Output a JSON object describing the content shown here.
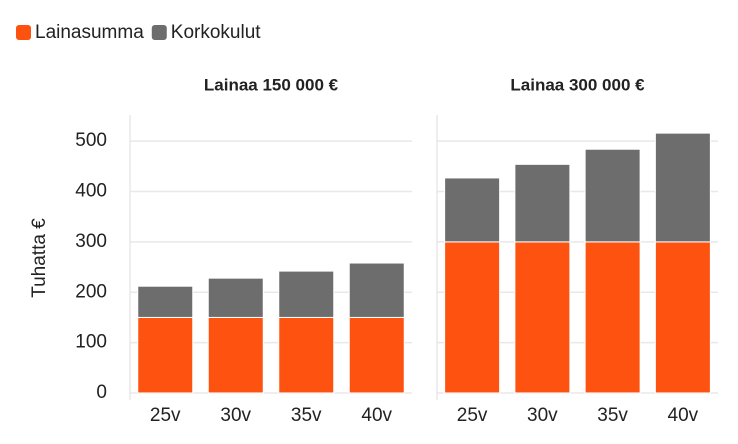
{
  "chart_data": {
    "type": "bar",
    "stacked": true,
    "y_label": "Tuhatta €",
    "facets": [
      "Lainaa 150 000 €",
      "Lainaa 300 000 €"
    ],
    "categories": [
      "25v",
      "30v",
      "35v",
      "40v"
    ],
    "series": [
      {
        "name": "Lainasumma",
        "color": "#fe5211",
        "values": [
          [
            150,
            150,
            150,
            150
          ],
          [
            300,
            300,
            300,
            300
          ]
        ]
      },
      {
        "name": "Korkokulut",
        "color": "#6d6d6d",
        "values": [
          [
            62,
            78,
            92,
            108
          ],
          [
            127,
            154,
            184,
            216
          ]
        ]
      }
    ],
    "ylim": [
      -14,
      552
    ],
    "yticks": [
      0,
      100,
      200,
      300,
      400,
      500
    ],
    "grid": true
  }
}
